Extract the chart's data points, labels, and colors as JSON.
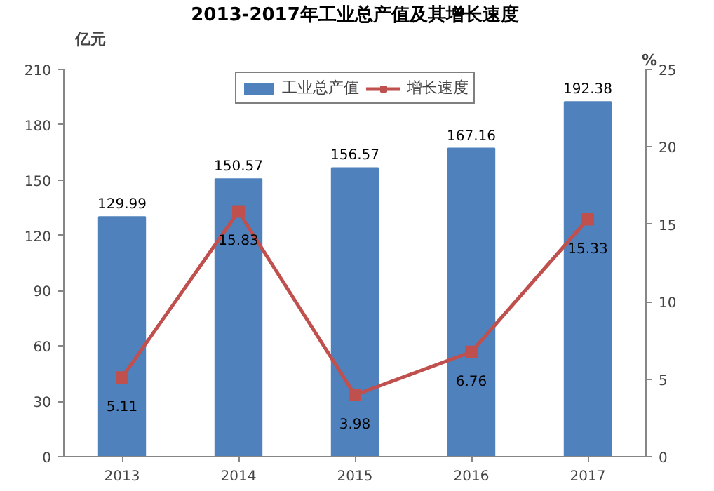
{
  "chart_data": {
    "type": "bar",
    "title": "2013-2017年工业总产值及其增长速度",
    "ylabel": "亿元",
    "y2label": "%",
    "categories": [
      "2013",
      "2014",
      "2015",
      "2016",
      "2017"
    ],
    "series": [
      {
        "name": "工业总产值",
        "type": "bar",
        "color": "#4f81bd",
        "values": [
          129.99,
          150.57,
          156.57,
          167.16,
          192.38
        ]
      },
      {
        "name": "增长速度",
        "type": "line",
        "axis": "y2",
        "color": "#c0504d",
        "marker": "square",
        "values": [
          5.11,
          15.83,
          3.98,
          6.76,
          15.33
        ]
      }
    ],
    "ylim": [
      0,
      210
    ],
    "yticks": [
      0,
      30,
      60,
      90,
      120,
      150,
      180,
      210
    ],
    "y2lim": [
      0,
      25
    ],
    "y2ticks": [
      0,
      5,
      10,
      15,
      20,
      25
    ],
    "data_labels": true,
    "legend": "top",
    "grid": false
  }
}
